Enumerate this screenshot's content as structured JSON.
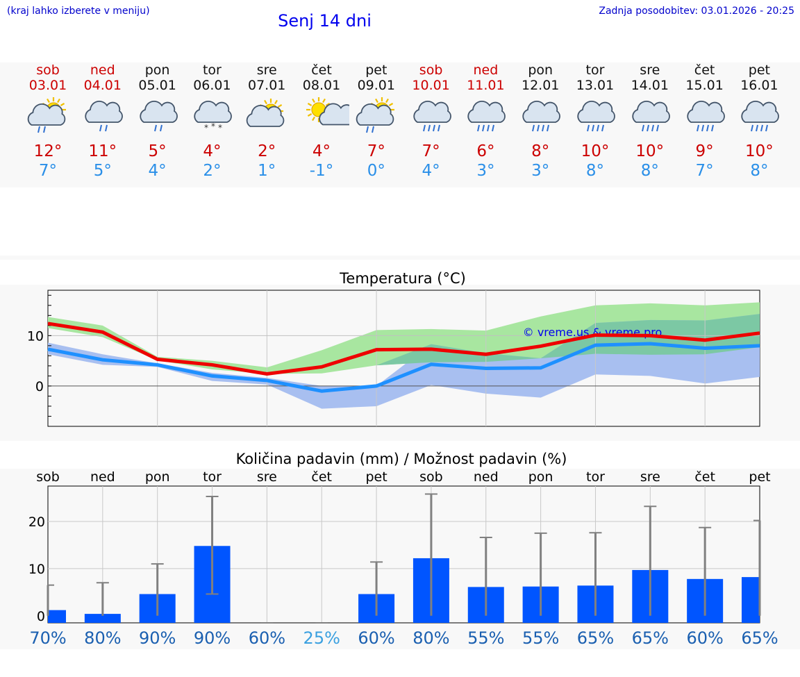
{
  "header": {
    "hint": "(kraj lahko izberete v meniju)",
    "title": "Senj 14 dni",
    "updated": "Zadnja posodobitev: 03.01.2026 - 20:25"
  },
  "days": [
    {
      "name": "sob",
      "date": "03.01",
      "weekend": true,
      "icon": "sun-cloud-rain-icon",
      "tmax": "12°",
      "tmin": "7°"
    },
    {
      "name": "ned",
      "date": "04.01",
      "weekend": true,
      "icon": "cloud-rain-icon",
      "tmax": "11°",
      "tmin": "5°"
    },
    {
      "name": "pon",
      "date": "05.01",
      "weekend": false,
      "icon": "cloud-rain-icon",
      "tmax": "5°",
      "tmin": "4°"
    },
    {
      "name": "tor",
      "date": "06.01",
      "weekend": false,
      "icon": "cloud-snow-icon",
      "tmax": "4°",
      "tmin": "2°"
    },
    {
      "name": "sre",
      "date": "07.01",
      "weekend": false,
      "icon": "sun-cloud-icon",
      "tmax": "2°",
      "tmin": "1°"
    },
    {
      "name": "čet",
      "date": "08.01",
      "weekend": false,
      "icon": "sun-cloud-small-icon",
      "tmax": "4°",
      "tmin": "-1°"
    },
    {
      "name": "pet",
      "date": "09.01",
      "weekend": false,
      "icon": "sun-cloud-rain-icon",
      "tmax": "7°",
      "tmin": "0°"
    },
    {
      "name": "sob",
      "date": "10.01",
      "weekend": true,
      "icon": "cloud-heavy-rain-icon",
      "tmax": "7°",
      "tmin": "4°"
    },
    {
      "name": "ned",
      "date": "11.01",
      "weekend": true,
      "icon": "cloud-heavy-rain-icon",
      "tmax": "6°",
      "tmin": "3°"
    },
    {
      "name": "pon",
      "date": "12.01",
      "weekend": false,
      "icon": "cloud-heavy-rain-icon",
      "tmax": "8°",
      "tmin": "3°"
    },
    {
      "name": "tor",
      "date": "13.01",
      "weekend": false,
      "icon": "cloud-heavy-rain-icon",
      "tmax": "10°",
      "tmin": "8°"
    },
    {
      "name": "sre",
      "date": "14.01",
      "weekend": false,
      "icon": "cloud-heavy-rain-icon",
      "tmax": "10°",
      "tmin": "8°"
    },
    {
      "name": "čet",
      "date": "15.01",
      "weekend": false,
      "icon": "cloud-heavy-rain-icon",
      "tmax": "9°",
      "tmin": "7°"
    },
    {
      "name": "pet",
      "date": "16.01",
      "weekend": false,
      "icon": "cloud-heavy-rain-icon",
      "tmax": "10°",
      "tmin": "8°"
    }
  ],
  "colors": {
    "red": "#ee0000",
    "blue": "#1e90ff",
    "green_band": "#a8e6a0",
    "blue_band": "#a8bff0",
    "overlap_band": "#7cc8a4",
    "bar": "#0055ff",
    "whisker": "#808080",
    "pct_dark": "#1a5fb0",
    "pct_light": "#3aa0e0",
    "weekend": "#cc0000"
  },
  "chart_data": [
    {
      "type": "line",
      "title": "Temperatura (°C)",
      "watermark": "© vreme.us & vreme.pro",
      "x": [
        0,
        1,
        2,
        3,
        4,
        5,
        6,
        7,
        8,
        9,
        10,
        11,
        12,
        13
      ],
      "ylim": [
        -8,
        19
      ],
      "yticks": [
        0,
        10
      ],
      "series": [
        {
          "name": "max",
          "values": [
            12.4,
            10.7,
            5.3,
            4.2,
            2.4,
            3.8,
            7.2,
            7.3,
            6.3,
            7.9,
            10.1,
            10.0,
            9.1,
            10.5
          ]
        },
        {
          "name": "min",
          "values": [
            7.3,
            5.2,
            4.2,
            2.0,
            1.1,
            -1.0,
            0.0,
            4.3,
            3.5,
            3.6,
            8.1,
            8.4,
            7.5,
            8.0
          ]
        },
        {
          "name": "max_range_low",
          "values": [
            11.5,
            9.7,
            5.1,
            3.3,
            2.4,
            2.5,
            4.1,
            4.7,
            4.8,
            5.5,
            6.4,
            6.2,
            6.3,
            7.7
          ]
        },
        {
          "name": "max_range_high",
          "values": [
            13.7,
            12.0,
            5.8,
            5.0,
            3.7,
            7.1,
            11.1,
            11.3,
            11.0,
            13.8,
            16.0,
            16.4,
            16.0,
            16.6
          ]
        },
        {
          "name": "min_range_low",
          "values": [
            6.3,
            4.2,
            3.8,
            1.0,
            0.3,
            -4.5,
            -4.0,
            0.2,
            -1.5,
            -2.3,
            2.3,
            2.0,
            0.5,
            1.8
          ]
        },
        {
          "name": "min_range_high",
          "values": [
            8.6,
            6.3,
            4.5,
            2.6,
            1.6,
            0.0,
            0.0,
            8.3,
            6.5,
            5.5,
            12.5,
            13.1,
            13.0,
            14.3
          ]
        }
      ]
    },
    {
      "type": "bar",
      "title": "Količina padavin (mm) / Možnost padavin (%)",
      "categories": [
        "sob",
        "ned",
        "pon",
        "tor",
        "sre",
        "čet",
        "pet",
        "sob",
        "ned",
        "pon",
        "tor",
        "sre",
        "čet",
        "pet"
      ],
      "ylim": [
        -1.5,
        27.5
      ],
      "yticks": [
        0,
        10,
        20
      ],
      "values": [
        1.2,
        0.4,
        4.6,
        14.8,
        0,
        0,
        4.6,
        12.2,
        6.1,
        6.2,
        6.4,
        9.7,
        7.8,
        8.2
      ],
      "err_low": [
        0,
        0,
        0,
        4.6,
        0,
        0,
        0,
        0,
        0,
        0,
        0,
        0,
        0,
        0
      ],
      "err_high": [
        6.5,
        7.0,
        11.0,
        25.3,
        0,
        0,
        11.4,
        25.8,
        16.6,
        17.5,
        17.6,
        23.2,
        18.7,
        20.2
      ],
      "probability": [
        "70%",
        "80%",
        "90%",
        "90%",
        "60%",
        "25%",
        "60%",
        "80%",
        "55%",
        "55%",
        "65%",
        "65%",
        "60%",
        "65%"
      ]
    }
  ]
}
